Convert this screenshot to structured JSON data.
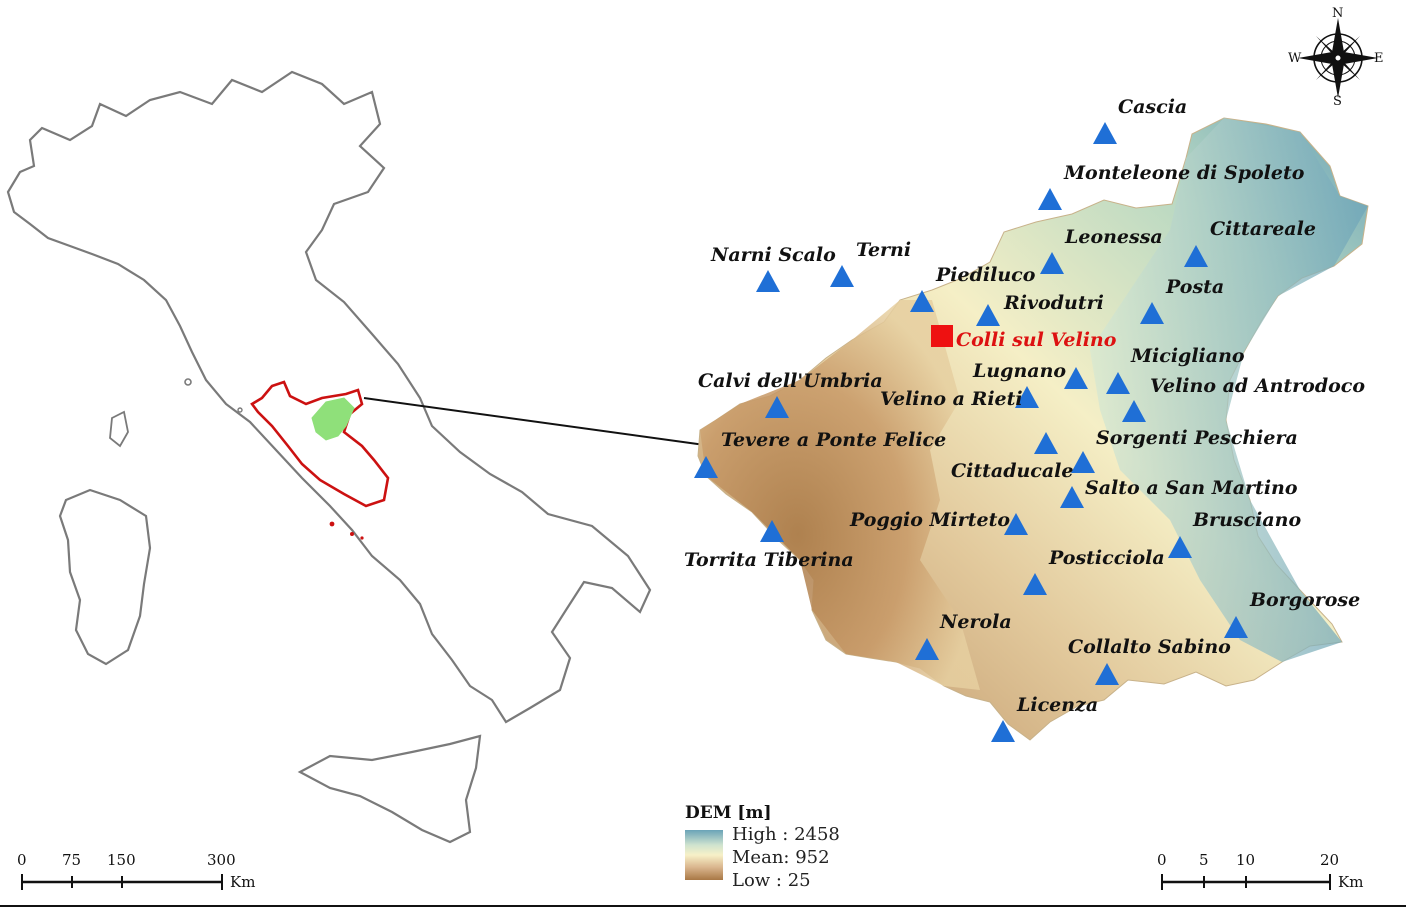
{
  "stations": [
    {
      "name": "Cascia"
    },
    {
      "name": "Monteleone di Spoleto"
    },
    {
      "name": "Cittareale"
    },
    {
      "name": "Leonessa"
    },
    {
      "name": "Narni Scalo"
    },
    {
      "name": "Terni"
    },
    {
      "name": "Piediluco"
    },
    {
      "name": "Posta"
    },
    {
      "name": "Rivodutri"
    },
    {
      "name": "Micigliano"
    },
    {
      "name": "Calvi dell'Umbria"
    },
    {
      "name": "Lugnano"
    },
    {
      "name": "Velino ad Antrodoco"
    },
    {
      "name": "Velino a Rieti"
    },
    {
      "name": "Tevere a Ponte Felice"
    },
    {
      "name": "Sorgenti Peschiera"
    },
    {
      "name": "Cittaducale"
    },
    {
      "name": "Salto a San Martino"
    },
    {
      "name": "Poggio Mirteto"
    },
    {
      "name": "Brusciano"
    },
    {
      "name": "Torrita Tiberina"
    },
    {
      "name": "Posticciola"
    },
    {
      "name": "Borgorose"
    },
    {
      "name": "Nerola"
    },
    {
      "name": "Collalto Sabino"
    },
    {
      "name": "Licenza"
    }
  ],
  "study_site": {
    "name": "Colli sul Velino",
    "color": "#ee1111"
  },
  "legend": {
    "title": "DEM [m]",
    "high": "High : 2458",
    "mean": "Mean:  952",
    "low": "Low : 25"
  },
  "scalebar_italy": {
    "ticks": [
      "0",
      "75",
      "150",
      "300"
    ],
    "unit": "Km"
  },
  "scalebar_region": {
    "ticks": [
      "0",
      "5",
      "10",
      "20"
    ],
    "unit": "Km"
  },
  "compass": {
    "n": "N",
    "s": "S",
    "e": "E",
    "w": "W"
  },
  "colors": {
    "station_marker": "#1f6fd6",
    "italy_outline": "#7a7a7a",
    "lazio_outline": "#cc1111",
    "basin_highlight": "#8fe07a",
    "dem_high": "#6aa3b7",
    "dem_mean": "#f7f1c8",
    "dem_low": "#a87845"
  }
}
